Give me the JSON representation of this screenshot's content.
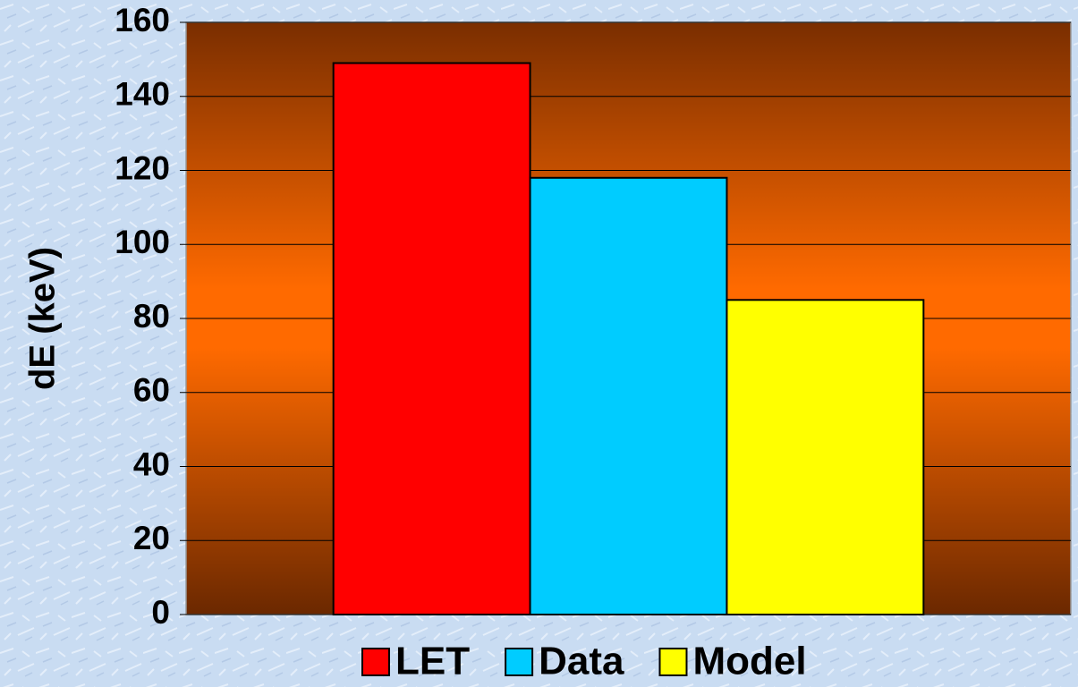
{
  "chart_data": {
    "type": "bar",
    "ylabel": "dE (keV)",
    "categories": [
      null
    ],
    "series": [
      {
        "name": "LET",
        "color": "#ff0000",
        "values": [
          149
        ]
      },
      {
        "name": "Data",
        "color": "#00ccff",
        "values": [
          118
        ]
      },
      {
        "name": "Model",
        "color": "#ffff00",
        "values": [
          85
        ]
      }
    ],
    "ylim": [
      0,
      160
    ],
    "yticks": [
      0,
      20,
      40,
      60,
      80,
      100,
      120,
      140,
      160
    ],
    "grid": true,
    "legend": "bottom"
  }
}
